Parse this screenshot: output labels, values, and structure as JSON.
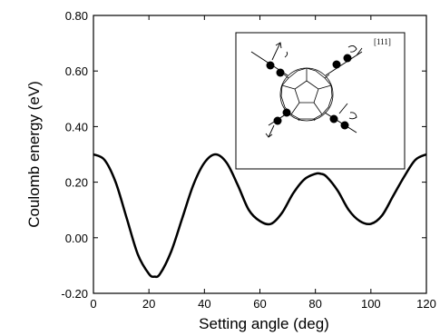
{
  "chart_data": {
    "type": "line",
    "xlabel": "Setting  angle (deg)",
    "ylabel": "Coulomb energy (eV)",
    "xlim": [
      0,
      120
    ],
    "ylim": [
      -0.2,
      0.8
    ],
    "x_ticks": [
      "0",
      "20",
      "40",
      "60",
      "80",
      "100",
      "120"
    ],
    "y_ticks": [
      "-0.20",
      "0.00",
      "0.20",
      "0.40",
      "0.60",
      "0.80"
    ],
    "grid": false,
    "series": [
      {
        "x": [
          0,
          4,
          8,
          12,
          16,
          20,
          22,
          24,
          28,
          32,
          36,
          40,
          44,
          48,
          52,
          56,
          60,
          64,
          68,
          72,
          76,
          80,
          82,
          84,
          88,
          92,
          96,
          100,
          104,
          108,
          112,
          116,
          120
        ],
        "values": [
          0.3,
          0.28,
          0.2,
          0.07,
          -0.06,
          -0.13,
          -0.14,
          -0.13,
          -0.05,
          0.07,
          0.19,
          0.27,
          0.3,
          0.27,
          0.19,
          0.1,
          0.06,
          0.05,
          0.09,
          0.16,
          0.21,
          0.23,
          0.23,
          0.22,
          0.17,
          0.1,
          0.06,
          0.05,
          0.08,
          0.15,
          0.22,
          0.28,
          0.3
        ],
        "color": "#000000"
      }
    ],
    "inset": {
      "label": "[111]",
      "depicts": "C60 fullerene molecule with four [111] axes, ions and rotation arrows"
    }
  }
}
